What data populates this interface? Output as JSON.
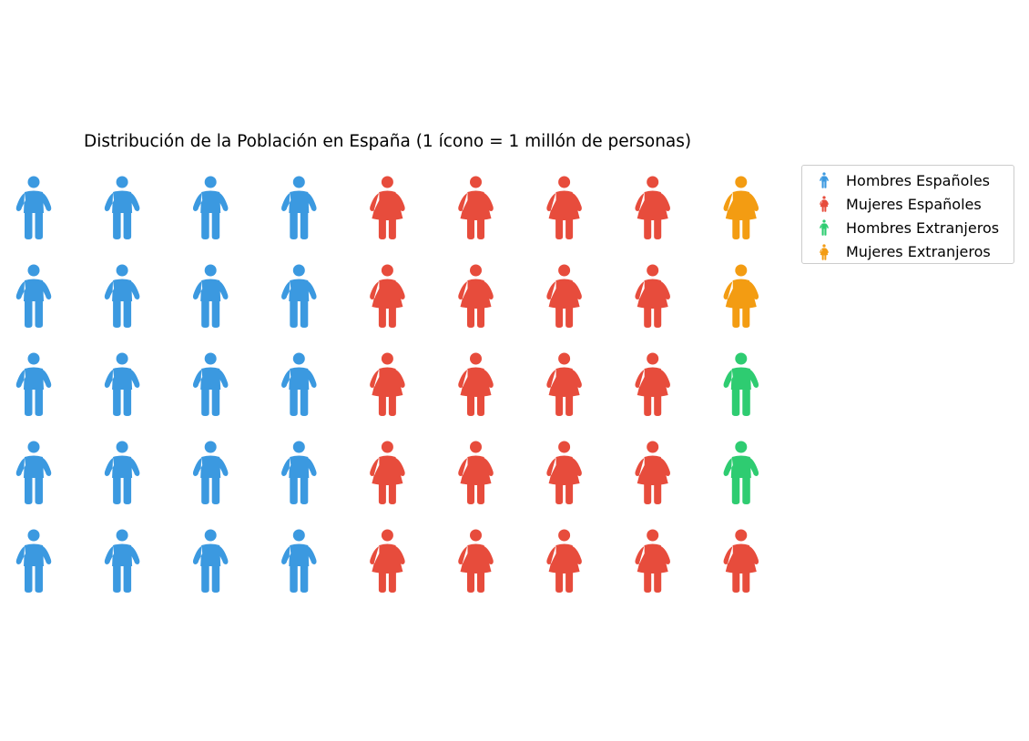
{
  "chart_data": {
    "type": "pictogram",
    "title": "Distribución de la Población en España (1 ícono = 1 millón de personas)",
    "unit_per_icon": 1,
    "layout": {
      "rows": 5,
      "columns": 9,
      "fill_order": "column-major"
    },
    "series": [
      {
        "name": "Hombres Españoles",
        "values": [
          20
        ],
        "color": "#3b99e0",
        "icon": "man-icon"
      },
      {
        "name": "Mujeres Españoles",
        "values": [
          21
        ],
        "color": "#e74c3c",
        "icon": "woman-icon"
      },
      {
        "name": "Hombres Extranjeros",
        "values": [
          2
        ],
        "color": "#2ecc71",
        "icon": "man-icon"
      },
      {
        "name": "Mujeres Extranjeros",
        "values": [
          2
        ],
        "color": "#f39c12",
        "icon": "woman-icon"
      }
    ],
    "cells": [
      "Hombres Españoles",
      "Hombres Españoles",
      "Hombres Españoles",
      "Hombres Españoles",
      "Hombres Españoles",
      "Hombres Españoles",
      "Hombres Españoles",
      "Hombres Españoles",
      "Hombres Españoles",
      "Hombres Españoles",
      "Hombres Españoles",
      "Hombres Españoles",
      "Hombres Españoles",
      "Hombres Españoles",
      "Hombres Españoles",
      "Hombres Españoles",
      "Hombres Españoles",
      "Hombres Españoles",
      "Hombres Españoles",
      "Hombres Españoles",
      "Mujeres Españoles",
      "Mujeres Españoles",
      "Mujeres Españoles",
      "Mujeres Españoles",
      "Mujeres Españoles",
      "Mujeres Españoles",
      "Mujeres Españoles",
      "Mujeres Españoles",
      "Mujeres Españoles",
      "Mujeres Españoles",
      "Mujeres Españoles",
      "Mujeres Españoles",
      "Mujeres Españoles",
      "Mujeres Españoles",
      "Mujeres Españoles",
      "Mujeres Españoles",
      "Mujeres Españoles",
      "Mujeres Españoles",
      "Mujeres Españoles",
      "Mujeres Españoles",
      "Mujeres Extranjeros",
      "Mujeres Extranjeros",
      "Hombres Extranjeros",
      "Hombres Extranjeros",
      "Mujeres Españoles"
    ],
    "legend_position": "upper-right-outside",
    "grid": false
  }
}
